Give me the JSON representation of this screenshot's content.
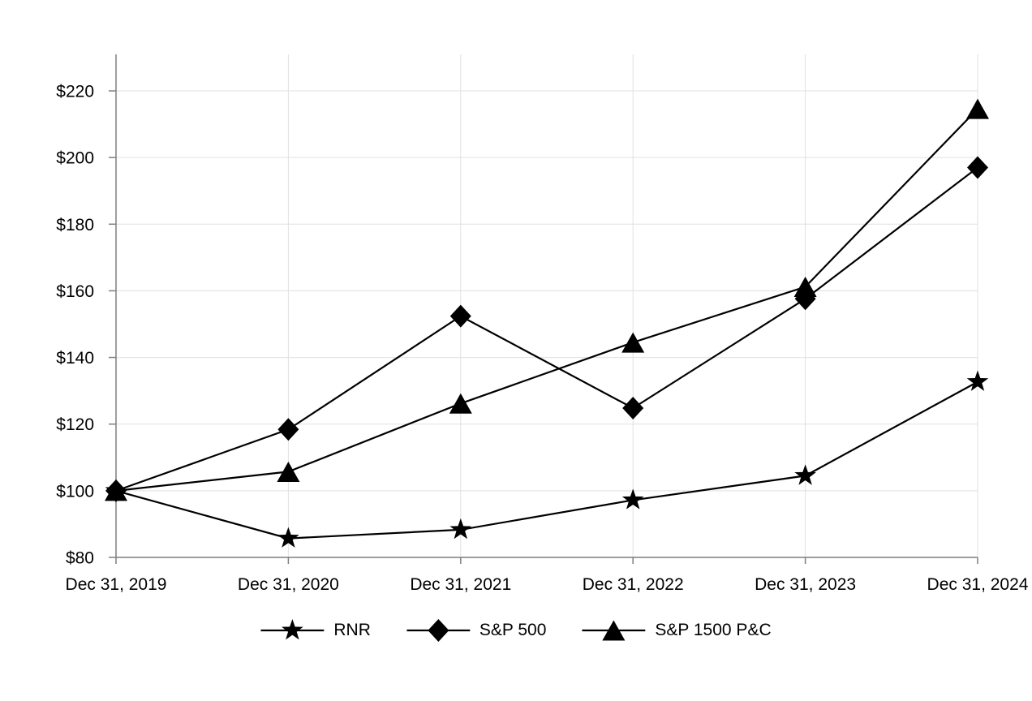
{
  "chart_data": {
    "type": "line",
    "title": "",
    "xlabel": "",
    "ylabel": "",
    "categories": [
      "Dec 31, 2019",
      "Dec 31, 2020",
      "Dec 31, 2021",
      "Dec 31, 2022",
      "Dec 31, 2023",
      "Dec 31, 2024"
    ],
    "series": [
      {
        "name": "RNR",
        "marker": "star",
        "values": [
          100.0,
          85.7,
          88.3,
          97.2,
          104.5,
          132.7
        ]
      },
      {
        "name": "S&P 500",
        "marker": "diamond",
        "values": [
          100.0,
          118.4,
          152.4,
          124.8,
          157.6,
          197.0
        ]
      },
      {
        "name": "S&P 1500 P&C",
        "marker": "triangle",
        "values": [
          100.0,
          105.7,
          126.2,
          144.5,
          161.2,
          214.6
        ]
      }
    ],
    "ylim": [
      80,
      220
    ],
    "ytick_step": 20,
    "ytick_prefix": "$",
    "ytick_labels": [
      "$80",
      "$100",
      "$120",
      "$140",
      "$160",
      "$180",
      "$200",
      "$220"
    ],
    "grid": true,
    "legend_position": "bottom",
    "line_color": "#000000",
    "text_color": "#000000",
    "axis_color": "#7f7f7f",
    "gridline_color": "#e0e0e0",
    "background_color": "#ffffff"
  }
}
